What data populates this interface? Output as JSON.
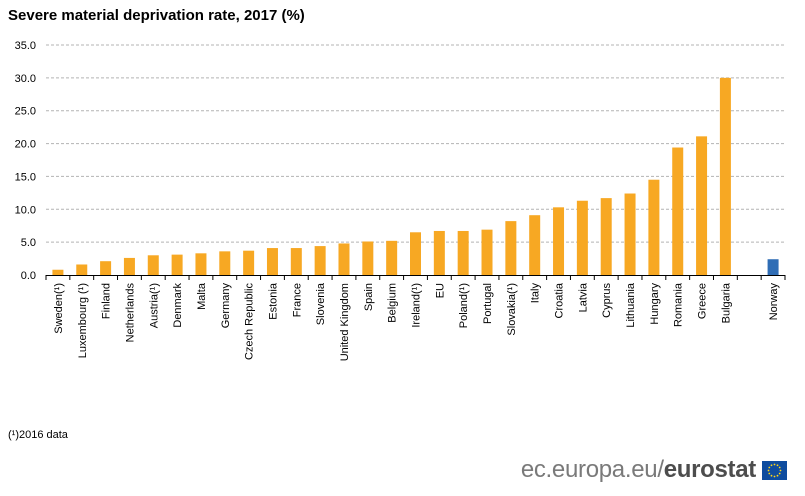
{
  "colors": {
    "bar": "#f7a823",
    "highlight": "#2f6db5",
    "grid": "#b3b3b3"
  },
  "footnote": "(¹)2016 data",
  "brand": {
    "site": "ec.europa.eu/",
    "name": "eurostat",
    "logo_icon": "eu-flag-icon"
  },
  "chart_data": {
    "type": "bar",
    "title": "Severe material deprivation rate, 2017 (%)",
    "xlabel": "",
    "ylabel": "",
    "ylim": [
      0,
      35
    ],
    "yticks": [
      "0.0",
      "5.0",
      "10.0",
      "15.0",
      "20.0",
      "25.0",
      "30.0",
      "35.0"
    ],
    "grid": true,
    "categories": [
      "Sweden(¹)",
      "Luxembourg (¹)",
      "Finland",
      "Netherlands",
      "Austria(¹)",
      "Denmark",
      "Malta",
      "Germany",
      "Czech Republic",
      "Estonia",
      "France",
      "Slovenia",
      "United Kingdom",
      "Spain",
      "Belgium",
      "Ireland(¹)",
      "EU",
      "Poland(¹)",
      "Portugal",
      "Slovakia(¹)",
      "Italy",
      "Croatia",
      "Latvia",
      "Cyprus",
      "Lithuania",
      "Hungary",
      "Romania",
      "Greece",
      "Bulgaria",
      "",
      "Norway"
    ],
    "values": [
      0.8,
      1.6,
      2.1,
      2.6,
      3.0,
      3.1,
      3.3,
      3.6,
      3.7,
      4.1,
      4.1,
      4.4,
      4.8,
      5.1,
      5.2,
      6.5,
      6.7,
      6.7,
      6.9,
      8.2,
      9.1,
      10.3,
      11.3,
      11.7,
      12.4,
      14.5,
      19.4,
      21.1,
      30.0,
      null,
      2.4
    ],
    "highlight": [
      "Norway"
    ]
  }
}
